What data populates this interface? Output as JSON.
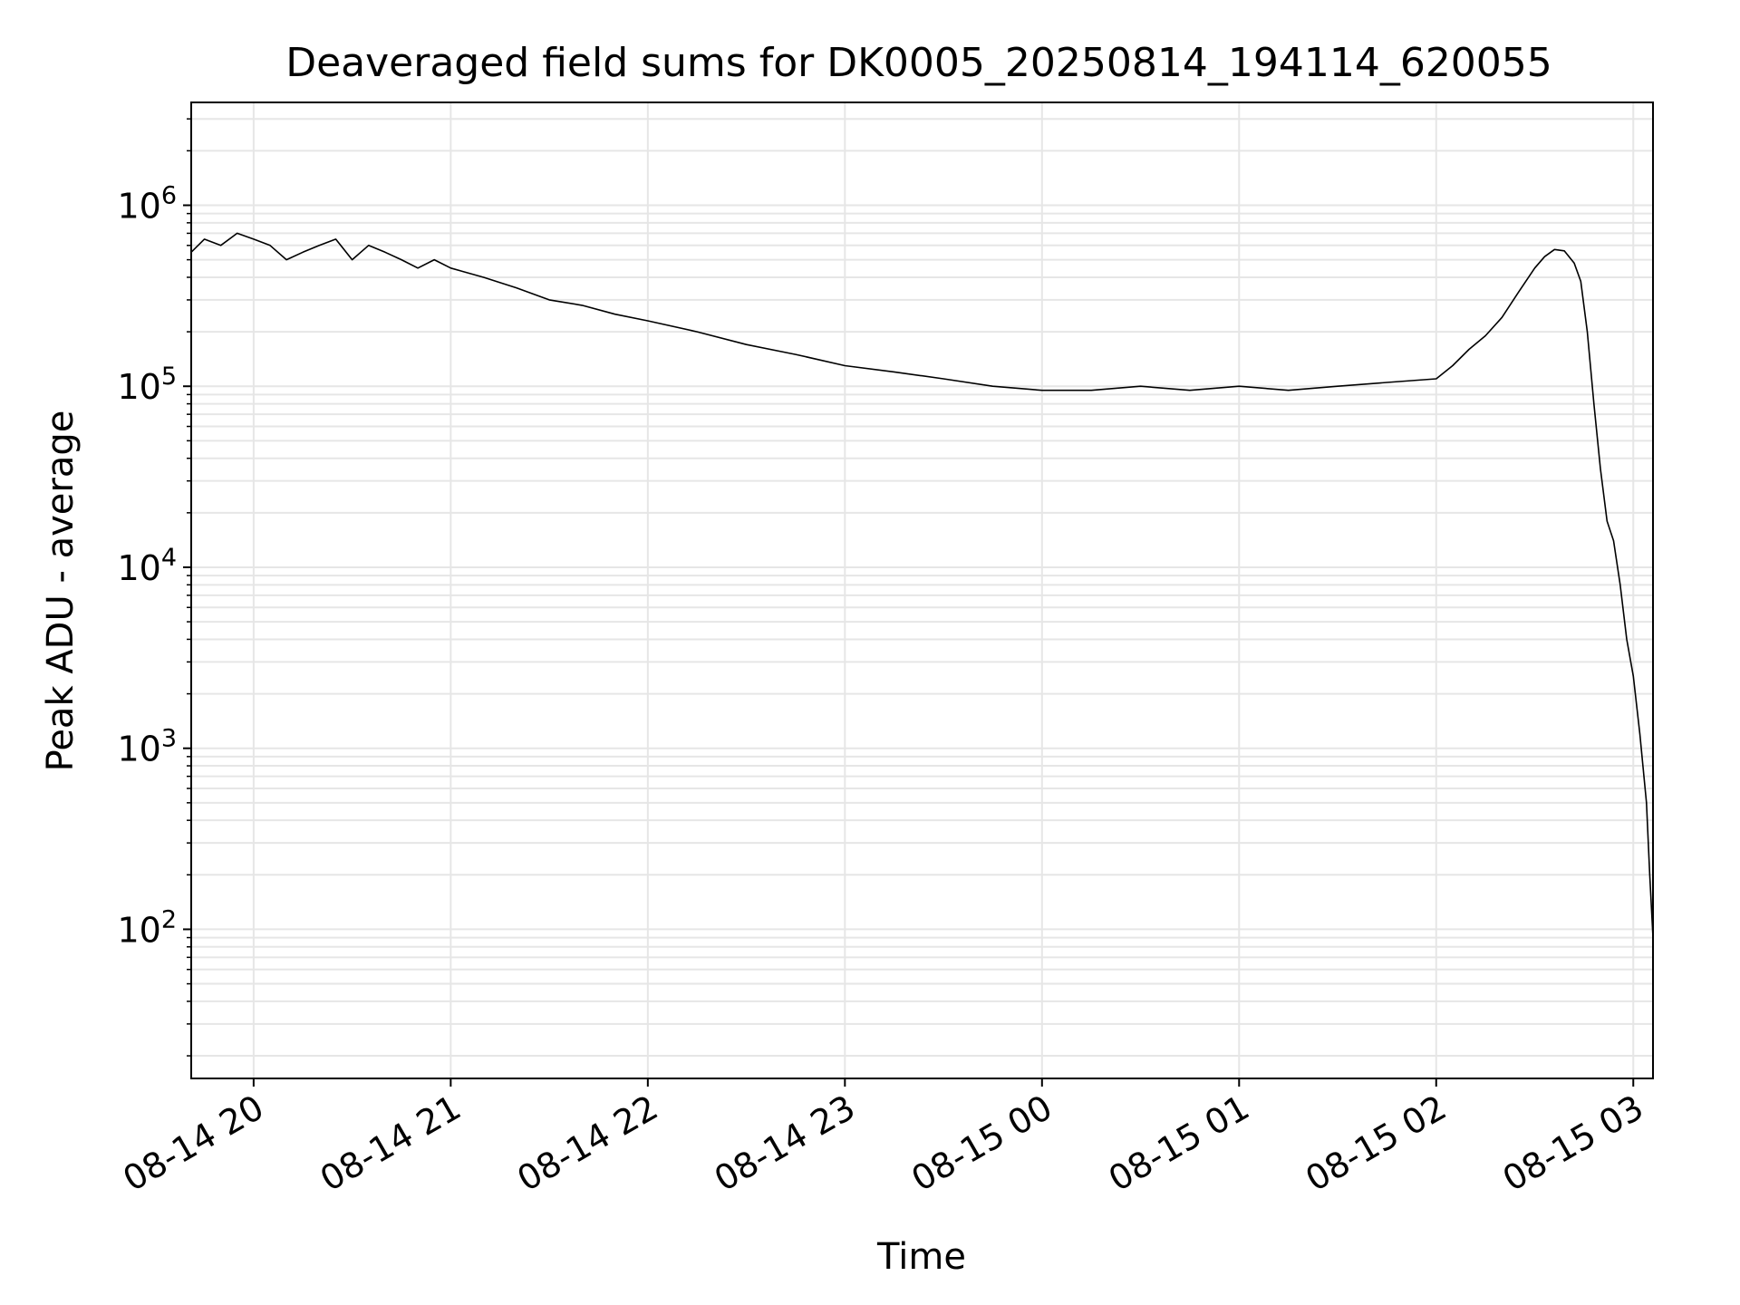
{
  "chart_data": {
    "type": "line",
    "title": "Deaveraged field sums for DK0005_20250814_194114_620055",
    "xlabel": "Time",
    "ylabel": "Peak ADU - average",
    "yscale": "log",
    "grid": true,
    "colors": {
      "line": "#000000",
      "grid": "#e6e6e6",
      "axes": "#000000"
    },
    "xlim": [
      "2025-08-14 19:41",
      "2025-08-15 03:06"
    ],
    "ylim": [
      15,
      3700000
    ],
    "x_ticks": [
      {
        "value": "2025-08-14 20:00",
        "label": "08-14 20"
      },
      {
        "value": "2025-08-14 21:00",
        "label": "08-14 21"
      },
      {
        "value": "2025-08-14 22:00",
        "label": "08-14 22"
      },
      {
        "value": "2025-08-14 23:00",
        "label": "08-14 23"
      },
      {
        "value": "2025-08-15 00:00",
        "label": "08-15 00"
      },
      {
        "value": "2025-08-15 01:00",
        "label": "08-15 01"
      },
      {
        "value": "2025-08-15 02:00",
        "label": "08-15 02"
      },
      {
        "value": "2025-08-15 03:00",
        "label": "08-15 03"
      }
    ],
    "y_ticks": [
      {
        "value": 100,
        "base": "10",
        "exp": "2"
      },
      {
        "value": 1000,
        "base": "10",
        "exp": "3"
      },
      {
        "value": 10000,
        "base": "10",
        "exp": "4"
      },
      {
        "value": 100000,
        "base": "10",
        "exp": "5"
      },
      {
        "value": 1000000,
        "base": "10",
        "exp": "6"
      }
    ],
    "series": [
      {
        "points": [
          [
            "2025-08-14 19:41",
            550000
          ],
          [
            "2025-08-14 19:45",
            650000
          ],
          [
            "2025-08-14 19:50",
            600000
          ],
          [
            "2025-08-14 19:55",
            700000
          ],
          [
            "2025-08-14 20:00",
            650000
          ],
          [
            "2025-08-14 20:05",
            600000
          ],
          [
            "2025-08-14 20:10",
            500000
          ],
          [
            "2025-08-14 20:15",
            550000
          ],
          [
            "2025-08-14 20:20",
            600000
          ],
          [
            "2025-08-14 20:25",
            650000
          ],
          [
            "2025-08-14 20:30",
            500000
          ],
          [
            "2025-08-14 20:35",
            600000
          ],
          [
            "2025-08-14 20:40",
            550000
          ],
          [
            "2025-08-14 20:45",
            500000
          ],
          [
            "2025-08-14 20:50",
            450000
          ],
          [
            "2025-08-14 20:55",
            500000
          ],
          [
            "2025-08-14 21:00",
            450000
          ],
          [
            "2025-08-14 21:10",
            400000
          ],
          [
            "2025-08-14 21:20",
            350000
          ],
          [
            "2025-08-14 21:30",
            300000
          ],
          [
            "2025-08-14 21:40",
            280000
          ],
          [
            "2025-08-14 21:50",
            250000
          ],
          [
            "2025-08-14 22:00",
            230000
          ],
          [
            "2025-08-14 22:15",
            200000
          ],
          [
            "2025-08-14 22:30",
            170000
          ],
          [
            "2025-08-14 22:45",
            150000
          ],
          [
            "2025-08-14 23:00",
            130000
          ],
          [
            "2025-08-14 23:15",
            120000
          ],
          [
            "2025-08-14 23:30",
            110000
          ],
          [
            "2025-08-14 23:45",
            100000
          ],
          [
            "2025-08-15 00:00",
            95000
          ],
          [
            "2025-08-15 00:15",
            95000
          ],
          [
            "2025-08-15 00:30",
            100000
          ],
          [
            "2025-08-15 00:45",
            95000
          ],
          [
            "2025-08-15 01:00",
            100000
          ],
          [
            "2025-08-15 01:15",
            95000
          ],
          [
            "2025-08-15 01:30",
            100000
          ],
          [
            "2025-08-15 01:45",
            105000
          ],
          [
            "2025-08-15 02:00",
            110000
          ],
          [
            "2025-08-15 02:05",
            130000
          ],
          [
            "2025-08-15 02:10",
            160000
          ],
          [
            "2025-08-15 02:15",
            190000
          ],
          [
            "2025-08-15 02:20",
            240000
          ],
          [
            "2025-08-15 02:25",
            330000
          ],
          [
            "2025-08-15 02:30",
            450000
          ],
          [
            "2025-08-15 02:33",
            520000
          ],
          [
            "2025-08-15 02:36",
            570000
          ],
          [
            "2025-08-15 02:39",
            560000
          ],
          [
            "2025-08-15 02:42",
            480000
          ],
          [
            "2025-08-15 02:44",
            380000
          ],
          [
            "2025-08-15 02:46",
            200000
          ],
          [
            "2025-08-15 02:48",
            80000
          ],
          [
            "2025-08-15 02:50",
            35000
          ],
          [
            "2025-08-15 02:52",
            18000
          ],
          [
            "2025-08-15 02:54",
            14000
          ],
          [
            "2025-08-15 02:56",
            8000
          ],
          [
            "2025-08-15 02:58",
            4000
          ],
          [
            "2025-08-15 03:00",
            2500
          ],
          [
            "2025-08-15 03:02",
            1200
          ],
          [
            "2025-08-15 03:04",
            500
          ],
          [
            "2025-08-15 03:05",
            200
          ],
          [
            "2025-08-15 03:06",
            90
          ]
        ]
      }
    ]
  }
}
